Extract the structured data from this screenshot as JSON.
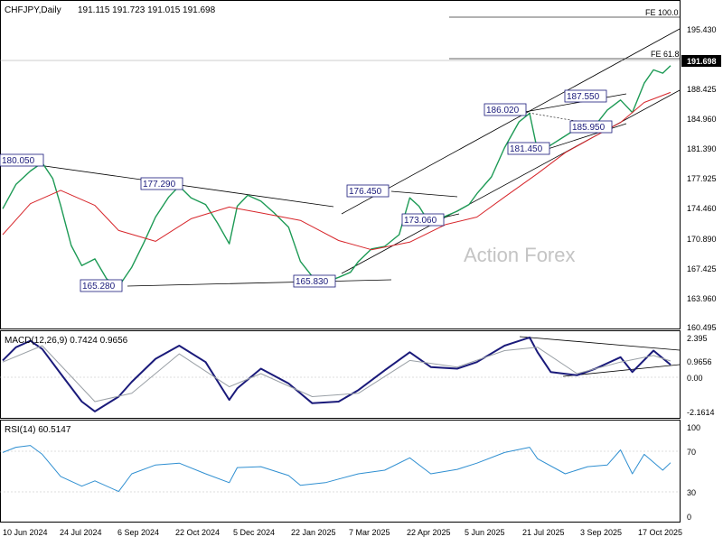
{
  "window": {
    "symbol_title": "CHFJPY,Daily",
    "ohlc": "191.115 191.723 191.015 191.698",
    "watermark": "Action Forex"
  },
  "colors": {
    "price_line": "#1d9a55",
    "ma_line": "#d7262b",
    "macd_line": "#1a1a7a",
    "macd_signal": "#9aa0a6",
    "rsi_line": "#2f8fd1",
    "trendline": "#000000",
    "box_label": "#1a1a7a",
    "current_price_bg": "#000000",
    "current_price_fg": "#ffffff",
    "watermark": "#c7c7c7",
    "grid": "#cfcfcf"
  },
  "chart_data": [
    {
      "type": "line",
      "panel": "price",
      "title": "CHFJPY,Daily",
      "ylim": [
        160.495,
        197.5
      ],
      "y_ticks": [
        "195.430",
        "191.698",
        "188.425",
        "184.960",
        "181.390",
        "177.925",
        "174.460",
        "170.890",
        "167.425",
        "163.960",
        "160.495"
      ],
      "x_ticks": [
        "10 Jun 2024",
        "24 Jul 2024",
        "6 Sep 2024",
        "22 Oct 2024",
        "5 Dec 2024",
        "22 Jan 2025",
        "7 Mar 2025",
        "22 Apr 2025",
        "5 Jun 2025",
        "21 Jul 2025",
        "3 Sep 2025",
        "17 Oct 2025"
      ],
      "current_price": 191.698,
      "series": [
        {
          "name": "CHFJPY",
          "x": [
            "2024-06-10",
            "2024-06-20",
            "2024-07-01",
            "2024-07-10",
            "2024-07-18",
            "2024-07-24",
            "2024-08-01",
            "2024-08-09",
            "2024-08-19",
            "2024-08-28",
            "2024-09-06",
            "2024-09-16",
            "2024-09-25",
            "2024-10-04",
            "2024-10-14",
            "2024-10-22",
            "2024-10-31",
            "2024-11-11",
            "2024-11-20",
            "2024-11-29",
            "2024-12-05",
            "2024-12-13",
            "2024-12-23",
            "2025-01-02",
            "2025-01-13",
            "2025-01-22",
            "2025-01-31",
            "2025-02-10",
            "2025-02-20",
            "2025-03-01",
            "2025-03-07",
            "2025-03-17",
            "2025-03-27",
            "2025-04-07",
            "2025-04-15",
            "2025-04-22",
            "2025-05-01",
            "2025-05-12",
            "2025-05-21",
            "2025-05-30",
            "2025-06-05",
            "2025-06-16",
            "2025-06-26",
            "2025-07-07",
            "2025-07-15",
            "2025-07-21",
            "2025-07-31",
            "2025-08-11",
            "2025-08-20",
            "2025-08-28",
            "2025-09-03",
            "2025-09-12",
            "2025-09-22",
            "2025-10-01",
            "2025-10-10",
            "2025-10-17",
            "2025-10-24",
            "2025-10-30"
          ],
          "values": [
            174.6,
            177.5,
            179.1,
            180.1,
            178.2,
            175.0,
            170.2,
            167.8,
            168.6,
            166.2,
            165.3,
            167.6,
            170.5,
            173.6,
            176.0,
            177.3,
            175.9,
            175.1,
            172.9,
            170.4,
            174.9,
            176.2,
            175.5,
            174.1,
            172.4,
            168.3,
            166.5,
            165.8,
            166.4,
            167.0,
            168.3,
            169.8,
            170.1,
            171.5,
            175.9,
            174.9,
            172.6,
            173.7,
            174.3,
            175.1,
            176.4,
            178.4,
            181.9,
            185.0,
            186.0,
            181.5,
            182.2,
            183.3,
            184.2,
            185.0,
            184.6,
            186.4,
            187.6,
            186.1,
            189.6,
            191.2,
            190.8,
            191.7
          ]
        },
        {
          "name": "MA",
          "x": [
            "2024-06-10",
            "2024-07-01",
            "2024-07-24",
            "2024-08-19",
            "2024-09-06",
            "2024-10-04",
            "2024-10-31",
            "2024-11-29",
            "2024-12-23",
            "2025-01-22",
            "2025-02-20",
            "2025-03-17",
            "2025-04-15",
            "2025-05-12",
            "2025-06-05",
            "2025-06-26",
            "2025-07-21",
            "2025-08-11",
            "2025-09-03",
            "2025-09-22",
            "2025-10-10",
            "2025-10-30"
          ],
          "values": [
            171.5,
            175.2,
            176.8,
            175.0,
            172.0,
            170.7,
            173.4,
            174.8,
            174.1,
            173.2,
            170.8,
            169.7,
            170.6,
            172.7,
            173.6,
            176.0,
            178.8,
            181.3,
            183.3,
            184.9,
            187.3,
            188.5
          ]
        }
      ],
      "annotations": {
        "labels": [
          "180.050",
          "177.290",
          "176.450",
          "186.020",
          "187.550",
          "165.280",
          "165.830",
          "173.060",
          "181.450",
          "185.950"
        ],
        "fib_levels": [
          "FE 100.0",
          "FE 61.8"
        ]
      }
    },
    {
      "type": "line",
      "panel": "macd",
      "title": "MACD(12,26,9) 0.7424 0.9656",
      "ylim": [
        -2.1614,
        2.395
      ],
      "y_ticks": [
        "2.395",
        "0.9656",
        "0.00",
        "-2.1614"
      ],
      "series": [
        {
          "name": "MACD",
          "x": [
            "2024-06-10",
            "2024-06-20",
            "2024-07-01",
            "2024-07-10",
            "2024-07-24",
            "2024-08-09",
            "2024-08-19",
            "2024-09-06",
            "2024-09-16",
            "2024-10-04",
            "2024-10-22",
            "2024-11-11",
            "2024-11-29",
            "2024-12-05",
            "2024-12-23",
            "2025-01-13",
            "2025-01-31",
            "2025-02-20",
            "2025-03-07",
            "2025-03-27",
            "2025-04-15",
            "2025-05-01",
            "2025-05-21",
            "2025-06-05",
            "2025-06-26",
            "2025-07-15",
            "2025-07-21",
            "2025-07-31",
            "2025-08-20",
            "2025-09-03",
            "2025-09-22",
            "2025-10-01",
            "2025-10-17",
            "2025-10-30"
          ],
          "values": [
            1.0,
            1.8,
            2.2,
            1.7,
            0.2,
            -1.5,
            -2.1,
            -1.2,
            -0.3,
            1.1,
            1.9,
            0.9,
            -1.4,
            -0.7,
            0.5,
            -0.4,
            -1.6,
            -1.5,
            -0.8,
            0.4,
            1.5,
            0.6,
            0.5,
            0.9,
            1.9,
            2.4,
            1.5,
            0.3,
            0.1,
            0.5,
            1.2,
            0.3,
            1.6,
            0.74
          ]
        },
        {
          "name": "Signal",
          "x": [
            "2024-06-10",
            "2024-07-10",
            "2024-08-19",
            "2024-09-16",
            "2024-10-22",
            "2024-11-29",
            "2024-12-23",
            "2025-01-31",
            "2025-03-07",
            "2025-04-15",
            "2025-05-21",
            "2025-06-26",
            "2025-07-21",
            "2025-08-20",
            "2025-09-22",
            "2025-10-17",
            "2025-10-30"
          ],
          "values": [
            0.9,
            1.9,
            -1.5,
            -1.0,
            1.4,
            -0.6,
            0.2,
            -1.2,
            -1.0,
            1.0,
            0.6,
            1.6,
            1.8,
            0.2,
            0.9,
            1.3,
            0.97
          ]
        }
      ]
    },
    {
      "type": "line",
      "panel": "rsi",
      "title": "RSI(14) 60.5147",
      "ylim": [
        0,
        100
      ],
      "y_ticks": [
        "100",
        "70",
        "30",
        "0"
      ],
      "series": [
        {
          "name": "RSI",
          "x": [
            "2024-06-10",
            "2024-06-20",
            "2024-07-01",
            "2024-07-10",
            "2024-07-24",
            "2024-08-09",
            "2024-08-19",
            "2024-09-06",
            "2024-09-16",
            "2024-10-04",
            "2024-10-22",
            "2024-11-11",
            "2024-11-29",
            "2024-12-05",
            "2024-12-23",
            "2025-01-13",
            "2025-01-22",
            "2025-02-10",
            "2025-02-20",
            "2025-03-07",
            "2025-03-27",
            "2025-04-15",
            "2025-05-01",
            "2025-05-21",
            "2025-06-05",
            "2025-06-26",
            "2025-07-15",
            "2025-07-21",
            "2025-08-11",
            "2025-08-28",
            "2025-09-12",
            "2025-09-22",
            "2025-10-01",
            "2025-10-10",
            "2025-10-24",
            "2025-10-30"
          ],
          "values": [
            72,
            78,
            80,
            70,
            45,
            34,
            40,
            28,
            48,
            58,
            60,
            48,
            38,
            55,
            56,
            46,
            35,
            38,
            42,
            48,
            52,
            66,
            48,
            53,
            60,
            72,
            78,
            65,
            48,
            56,
            58,
            75,
            48,
            70,
            52,
            60.5
          ]
        }
      ]
    }
  ]
}
